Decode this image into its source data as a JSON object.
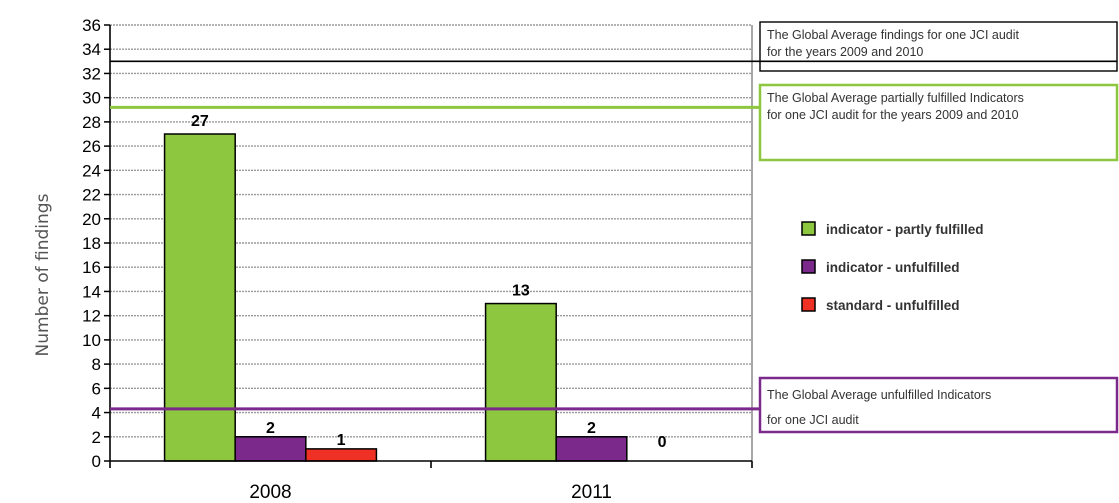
{
  "chart_data": {
    "type": "bar",
    "categories": [
      "2008",
      "2011"
    ],
    "series": [
      {
        "name": "indicator - partly fulfilled",
        "color": "#8dc63f",
        "values": [
          27,
          13
        ]
      },
      {
        "name": "indicator - unfulfilled",
        "color": "#7b2a8c",
        "values": [
          2,
          2
        ]
      },
      {
        "name": "standard - unfulfilled",
        "color": "#ee3124",
        "values": [
          1,
          0
        ]
      }
    ],
    "data_labels": [
      [
        "27",
        "13"
      ],
      [
        "2",
        "2"
      ],
      [
        "1",
        "0"
      ]
    ],
    "ylabel": "Number of findings",
    "xlabel": "",
    "ylim": [
      0,
      36
    ],
    "yticks": [
      0,
      2,
      4,
      6,
      8,
      10,
      12,
      14,
      16,
      18,
      20,
      22,
      24,
      26,
      28,
      30,
      32,
      34,
      36
    ],
    "grid": true,
    "legend_position": "right",
    "reference_lines": [
      {
        "value": 33,
        "color": "#000000",
        "label_lines": [
          "The Global Average findings for one JCI audit",
          "for the years 2009 and 2010"
        ]
      },
      {
        "value": 29.2,
        "color": "#8dc63f",
        "label_lines": [
          "The Global Average partially fulfilled Indicators",
          "for one JCI audit for the years 2009 and 2010"
        ]
      },
      {
        "value": 4.3,
        "color": "#7b2a8c",
        "label_lines": [
          "The Global Average unfulfilled Indicators",
          "for one JCI audit"
        ]
      }
    ]
  }
}
